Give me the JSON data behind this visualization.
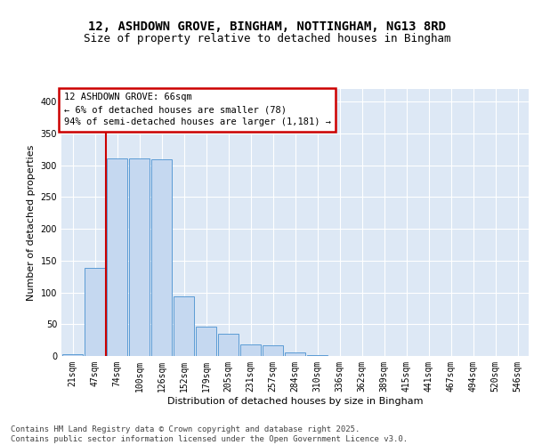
{
  "title1": "12, ASHDOWN GROVE, BINGHAM, NOTTINGHAM, NG13 8RD",
  "title2": "Size of property relative to detached houses in Bingham",
  "xlabel": "Distribution of detached houses by size in Bingham",
  "ylabel": "Number of detached properties",
  "categories": [
    "21sqm",
    "47sqm",
    "74sqm",
    "100sqm",
    "126sqm",
    "152sqm",
    "179sqm",
    "205sqm",
    "231sqm",
    "257sqm",
    "284sqm",
    "310sqm",
    "336sqm",
    "362sqm",
    "389sqm",
    "415sqm",
    "441sqm",
    "467sqm",
    "494sqm",
    "520sqm",
    "546sqm"
  ],
  "values": [
    3,
    139,
    311,
    311,
    309,
    94,
    46,
    35,
    18,
    17,
    5,
    1,
    0,
    0,
    0,
    0,
    0,
    0,
    0,
    0,
    0
  ],
  "bar_color": "#c5d8f0",
  "bar_edge_color": "#5b9bd5",
  "background_color": "#dde8f5",
  "annotation_text": "12 ASHDOWN GROVE: 66sqm\n← 6% of detached houses are smaller (78)\n94% of semi-detached houses are larger (1,181) →",
  "annotation_box_color": "#ffffff",
  "annotation_box_edge_color": "#cc0000",
  "vline_x": 1.48,
  "vline_color": "#cc0000",
  "ylim": [
    0,
    420
  ],
  "yticks": [
    0,
    50,
    100,
    150,
    200,
    250,
    300,
    350,
    400
  ],
  "footer": "Contains HM Land Registry data © Crown copyright and database right 2025.\nContains public sector information licensed under the Open Government Licence v3.0.",
  "title_fontsize": 10,
  "subtitle_fontsize": 9,
  "axis_label_fontsize": 8,
  "tick_fontsize": 7,
  "annotation_fontsize": 7.5,
  "footer_fontsize": 6.5
}
